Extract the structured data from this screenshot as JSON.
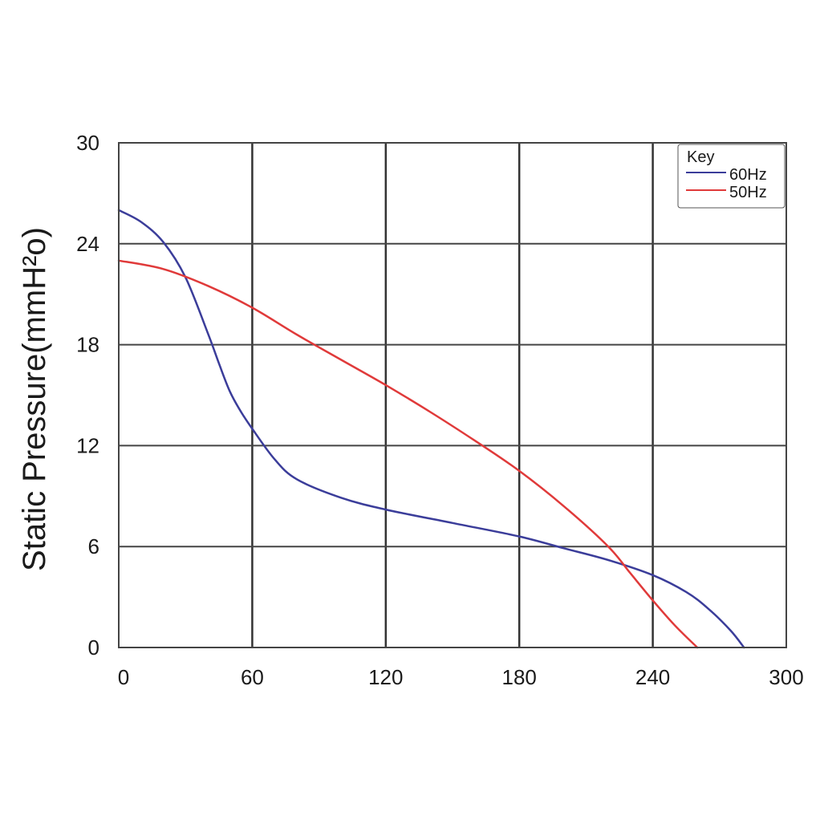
{
  "chart_data": {
    "type": "line",
    "title": "",
    "xlabel": "",
    "ylabel": "Static Pressure(mmH²o)",
    "xlim": [
      0,
      300
    ],
    "ylim": [
      0,
      30
    ],
    "xticks": [
      "0",
      "60",
      "120",
      "180",
      "240",
      "300"
    ],
    "yticks": [
      "0",
      "6",
      "12",
      "18",
      "24",
      "30"
    ],
    "grid": true,
    "legend": {
      "title": "Key",
      "placement": "top-right"
    },
    "series": [
      {
        "name": "60Hz",
        "color": "#3b3d9a",
        "x": [
          0,
          10,
          20,
          30,
          40,
          45,
          50,
          55,
          60,
          70,
          80,
          100,
          120,
          150,
          180,
          200,
          220,
          240,
          255,
          265,
          275,
          281
        ],
        "y": [
          26.0,
          25.3,
          24.1,
          22.0,
          18.7,
          16.9,
          15.2,
          14.0,
          13.0,
          11.2,
          10.0,
          8.9,
          8.2,
          7.4,
          6.6,
          5.9,
          5.2,
          4.3,
          3.3,
          2.3,
          1.0,
          0
        ]
      },
      {
        "name": "50Hz",
        "color": "#e03a3a",
        "x": [
          0,
          20,
          40,
          60,
          80,
          100,
          120,
          140,
          160,
          180,
          200,
          220,
          230,
          240,
          250,
          260
        ],
        "y": [
          23.0,
          22.5,
          21.5,
          20.2,
          18.6,
          17.1,
          15.6,
          14.0,
          12.3,
          10.5,
          8.4,
          6.0,
          4.4,
          2.8,
          1.3,
          0
        ]
      }
    ]
  }
}
